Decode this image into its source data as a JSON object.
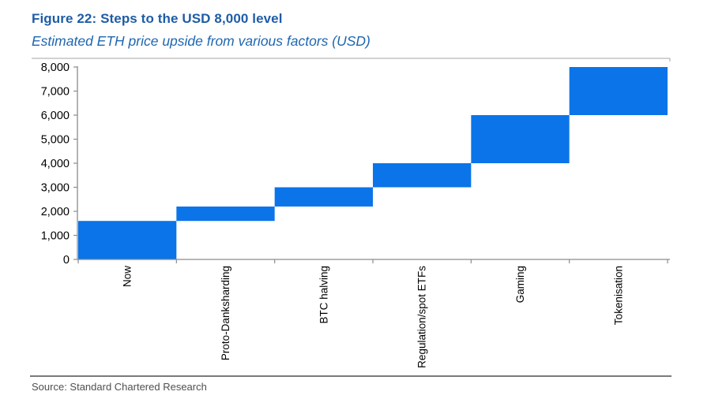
{
  "header": {
    "title": "Figure 22: Steps to the USD 8,000 level",
    "subtitle": "Estimated ETH price upside from various factors (USD)"
  },
  "footer": {
    "source": "Source: Standard Chartered Research"
  },
  "colors": {
    "title_text": "#1e5ca6",
    "subtitle_text": "#1f66b0",
    "bar_fill": "#0b74e8",
    "axis_line": "#8c8c8c",
    "plot_top_border": "#a6a6a6",
    "tick_label_text": "#000000",
    "source_text": "#4f4f4f",
    "source_divider": "#7a7a7a"
  },
  "chart_data": {
    "type": "bar",
    "subtype": "waterfall",
    "title": "Figure 22: Steps to the USD 8,000 level",
    "subtitle": "Estimated ETH price upside from various factors (USD)",
    "categories": [
      "Now",
      "Proto-Danksharding",
      "BTC halving",
      "Regulation/spot ETFs",
      "Gaming",
      "Tokenisation"
    ],
    "series": [
      {
        "name": "ETH price level (USD)",
        "segments": [
          {
            "category": "Now",
            "from": 0,
            "to": 1600,
            "increment": 1600
          },
          {
            "category": "Proto-Danksharding",
            "from": 1600,
            "to": 2200,
            "increment": 600
          },
          {
            "category": "BTC halving",
            "from": 2200,
            "to": 3000,
            "increment": 800
          },
          {
            "category": "Regulation/spot ETFs",
            "from": 3000,
            "to": 4000,
            "increment": 1000
          },
          {
            "category": "Gaming",
            "from": 4000,
            "to": 6000,
            "increment": 2000
          },
          {
            "category": "Tokenisation",
            "from": 6000,
            "to": 8000,
            "increment": 2000
          }
        ]
      }
    ],
    "xlabel": "",
    "ylabel": "",
    "ylim": [
      0,
      8000
    ],
    "y_tick_step": 1000,
    "y_tick_labels": [
      "0",
      "1,000",
      "2,000",
      "3,000",
      "4,000",
      "5,000",
      "6,000",
      "7,000",
      "8,000"
    ],
    "grid": false,
    "legend_position": "none",
    "bar_color": "#0b74e8",
    "category_label_rotation_deg": 90
  }
}
